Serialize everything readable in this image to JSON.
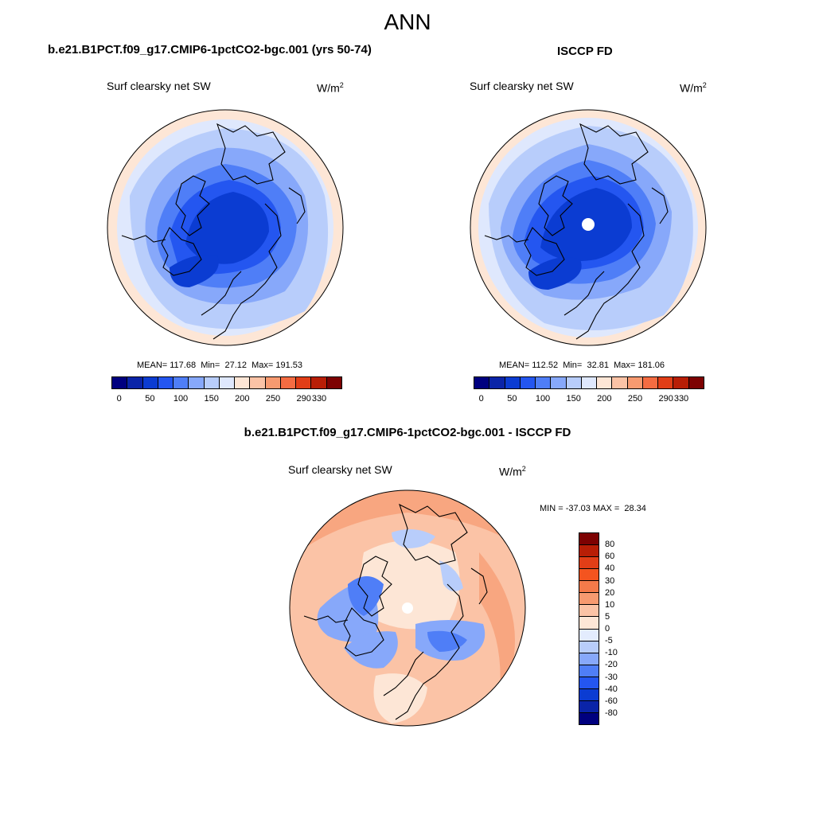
{
  "title": "ANN",
  "panel1": {
    "title": "b.e21.B1PCT.f09_g17.CMIP6-1pctCO2-bgc.001 (yrs 50-74)",
    "variable": "Surf clearsky net SW",
    "units_base": "W/m",
    "units_exp": "2",
    "stats": "MEAN= 117.68  Min=  27.12  Max= 191.53"
  },
  "panel2": {
    "title": "ISCCP FD",
    "variable": "Surf clearsky net SW",
    "units_base": "W/m",
    "units_exp": "2",
    "stats": "MEAN= 112.52  Min=  32.81  Max= 181.06"
  },
  "panel3": {
    "title": "b.e21.B1PCT.f09_g17.CMIP6-1pctCO2-bgc.001 - ISCCP FD",
    "variable": "Surf clearsky net SW",
    "units_base": "W/m",
    "units_exp": "2",
    "stats": "MIN = -37.03 MAX =  28.34"
  },
  "colorbar_abs": {
    "colors": [
      "#00007f",
      "#0a24a8",
      "#0b3cd2",
      "#2456f0",
      "#4f7ef7",
      "#87a8fa",
      "#b8cdfb",
      "#dfe8fd",
      "#fde6d6",
      "#fbc3a6",
      "#f79a70",
      "#f46c42",
      "#e13e17",
      "#b81e06",
      "#7d0202"
    ],
    "labels": [
      "0",
      "50",
      "100",
      "150",
      "200",
      "250",
      "290",
      "330"
    ],
    "label_boundaries": [
      1,
      3,
      5,
      7,
      9,
      11,
      13,
      14
    ]
  },
  "colorbar_diff": {
    "colors": [
      "#7d0202",
      "#b81e06",
      "#e13e17",
      "#f4541f",
      "#f47a4a",
      "#f79a70",
      "#fbc3a6",
      "#fde6d6",
      "#e3ecfd",
      "#b8cdfb",
      "#87a8fa",
      "#4f7ef7",
      "#2456f0",
      "#0b3cd2",
      "#0a24a8",
      "#00007f"
    ],
    "labels": [
      "80",
      "60",
      "40",
      "30",
      "20",
      "10",
      "5",
      "0",
      "-5",
      "-10",
      "-20",
      "-30",
      "-40",
      "-60",
      "-80"
    ]
  }
}
